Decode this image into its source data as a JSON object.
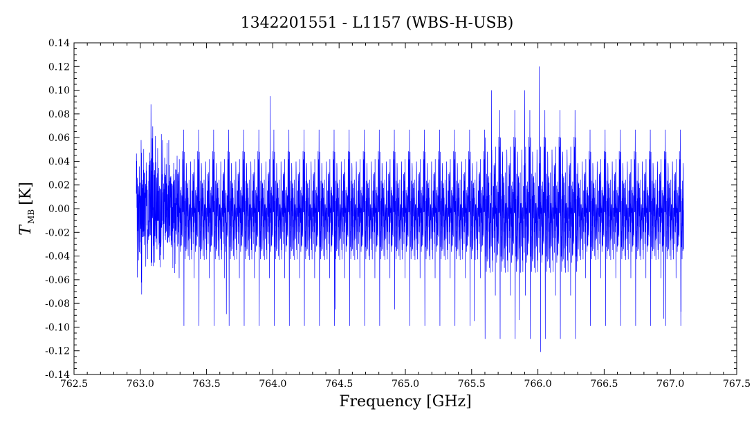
{
  "chart_data": {
    "type": "line",
    "title": "1342201551 - L1157 (WBS-H-USB)",
    "xlabel": "Frequency [GHz]",
    "ylabel_main": "T",
    "ylabel_sub": "MB",
    "ylabel_unit": "[K]",
    "xlim": [
      762.5,
      767.5
    ],
    "ylim": [
      -0.14,
      0.14
    ],
    "x_ticks": [
      "762.5",
      "763.0",
      "763.5",
      "764.0",
      "764.5",
      "765.0",
      "765.5",
      "766.0",
      "766.5",
      "767.0",
      "767.5"
    ],
    "y_ticks": [
      "-0.14",
      "-0.12",
      "-0.10",
      "-0.08",
      "-0.06",
      "-0.04",
      "-0.02",
      "0.00",
      "0.02",
      "0.04",
      "0.06",
      "0.08",
      "0.10",
      "0.12",
      "0.14"
    ],
    "grid": false,
    "series": [
      {
        "color": "#0000ff",
        "x_range": [
          762.97,
          767.1
        ],
        "noise_rms": 0.025,
        "peaks": [
          {
            "x": 763.08,
            "y": 0.088
          },
          {
            "x": 763.98,
            "y": 0.095
          },
          {
            "x": 765.65,
            "y": 0.1
          },
          {
            "x": 765.9,
            "y": 0.1
          },
          {
            "x": 766.01,
            "y": 0.12
          },
          {
            "x": 766.02,
            "y": -0.121
          },
          {
            "x": 763.65,
            "y": -0.089
          },
          {
            "x": 765.52,
            "y": -0.095
          },
          {
            "x": 765.86,
            "y": -0.094
          },
          {
            "x": 766.95,
            "y": -0.093
          },
          {
            "x": 764.47,
            "y": -0.085
          },
          {
            "x": 764.92,
            "y": -0.085
          },
          {
            "x": 767.08,
            "y": -0.087
          }
        ]
      }
    ]
  }
}
